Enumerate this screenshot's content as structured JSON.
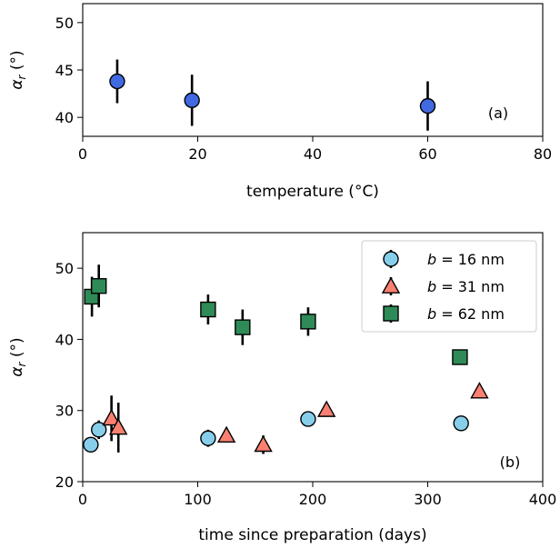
{
  "chart_data": [
    {
      "type": "scatter",
      "panel_label": "(a)",
      "xlabel": "temperature (°C)",
      "ylabel": "αr (°)",
      "xlim": [
        0,
        80
      ],
      "ylim": [
        38,
        52
      ],
      "xticks": [
        0,
        20,
        40,
        60,
        80
      ],
      "yticks": [
        40,
        45,
        50
      ],
      "series": [
        {
          "color": "#4169e1",
          "marker": "circle",
          "points": [
            {
              "x": 6,
              "y": 43.8,
              "err": 2.3
            },
            {
              "x": 19,
              "y": 41.8,
              "err": 2.7
            },
            {
              "x": 60,
              "y": 41.2,
              "err": 2.6
            }
          ]
        }
      ]
    },
    {
      "type": "scatter",
      "panel_label": "(b)",
      "xlabel": "time since preparation (days)",
      "ylabel": "αr (°)",
      "xlim": [
        0,
        400
      ],
      "ylim": [
        20,
        55
      ],
      "xticks": [
        0,
        100,
        200,
        300,
        400
      ],
      "yticks": [
        20,
        30,
        40,
        50
      ],
      "legend_position": "top-right",
      "series": [
        {
          "name": "b = 16 nm",
          "label_italic": "b",
          "label_rest": " = 16 nm",
          "color": "#87ceeb",
          "marker": "circle",
          "points": [
            {
              "x": 7,
              "y": 25.2,
              "err": 0.6
            },
            {
              "x": 14,
              "y": 27.3,
              "err": 1.3
            },
            {
              "x": 109,
              "y": 26.1,
              "err": 1.2
            },
            {
              "x": 196,
              "y": 28.8,
              "err": 0.6
            },
            {
              "x": 329,
              "y": 28.2,
              "err": 0.6
            }
          ]
        },
        {
          "name": "b = 31 nm",
          "label_italic": "b",
          "label_rest": " = 31 nm",
          "color": "#fa8072",
          "marker": "triangle",
          "points": [
            {
              "x": 25,
              "y": 28.9,
              "err": 3.2
            },
            {
              "x": 31,
              "y": 27.6,
              "err": 3.5
            },
            {
              "x": 125,
              "y": 26.5,
              "err": 0.7
            },
            {
              "x": 157,
              "y": 25.2,
              "err": 1.3
            },
            {
              "x": 212,
              "y": 30.1,
              "err": 0.7
            },
            {
              "x": 345,
              "y": 32.7,
              "err": 0.7
            }
          ]
        },
        {
          "name": "b = 62 nm",
          "label_italic": "b",
          "label_rest": " = 62 nm",
          "color": "#2e8b57",
          "marker": "square",
          "points": [
            {
              "x": 8,
              "y": 46.0,
              "err": 2.8
            },
            {
              "x": 14,
              "y": 47.5,
              "err": 3.0
            },
            {
              "x": 109,
              "y": 44.2,
              "err": 2.1
            },
            {
              "x": 139,
              "y": 41.7,
              "err": 2.5
            },
            {
              "x": 196,
              "y": 42.5,
              "err": 2.0
            },
            {
              "x": 328,
              "y": 37.5,
              "err": 0.7
            }
          ]
        }
      ]
    }
  ]
}
